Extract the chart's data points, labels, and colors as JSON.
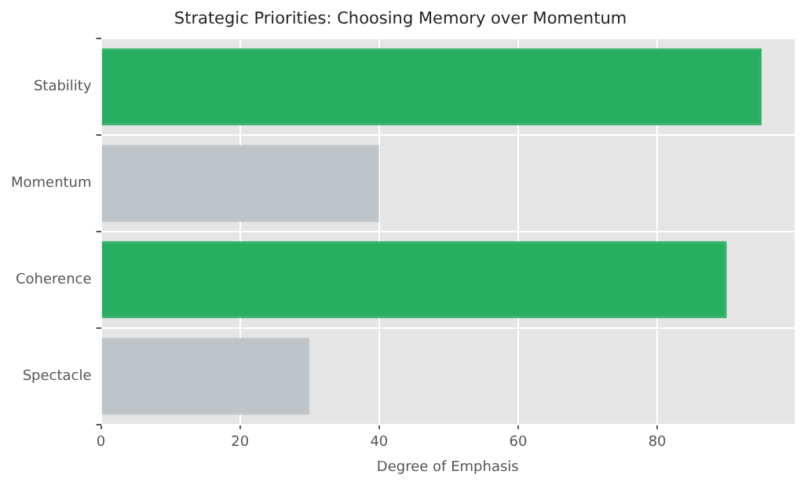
{
  "chart_data": {
    "type": "bar",
    "orientation": "horizontal",
    "title": "Strategic Priorities: Choosing Memory over Momentum",
    "xlabel": "Degree of Emphasis",
    "categories": [
      "Stability",
      "Momentum",
      "Coherence",
      "Spectacle"
    ],
    "values": [
      95,
      40,
      90,
      30
    ],
    "colors": [
      "#27ae60",
      "#bdc3c7",
      "#27ae60",
      "#bdc3c7"
    ],
    "xlim": [
      0,
      99.75
    ],
    "xticks": [
      0,
      20,
      40,
      60,
      80
    ],
    "grid": true,
    "legend": false
  }
}
